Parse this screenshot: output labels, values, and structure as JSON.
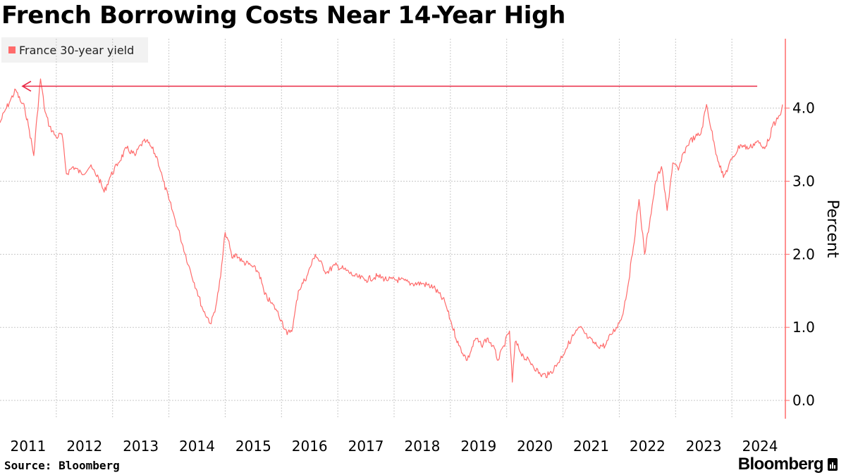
{
  "chart_data": {
    "type": "line",
    "title": "French Borrowing Costs Near 14-Year High",
    "ylabel": "Percent",
    "xlabel": "",
    "ylim": [
      -0.25,
      4.95
    ],
    "xlim": [
      2011.0,
      2024.95
    ],
    "y_ticks": [
      {
        "value": 0,
        "label": "0.0"
      },
      {
        "value": 1,
        "label": "1.0"
      },
      {
        "value": 2,
        "label": "2.0"
      },
      {
        "value": 3,
        "label": "3.0"
      },
      {
        "value": 4,
        "label": "4.0"
      }
    ],
    "x_ticks": [
      {
        "value": 2011,
        "label": "2011"
      },
      {
        "value": 2012,
        "label": "2012"
      },
      {
        "value": 2013,
        "label": "2013"
      },
      {
        "value": 2014,
        "label": "2014"
      },
      {
        "value": 2015,
        "label": "2015"
      },
      {
        "value": 2016,
        "label": "2016"
      },
      {
        "value": 2017,
        "label": "2017"
      },
      {
        "value": 2018,
        "label": "2018"
      },
      {
        "value": 2019,
        "label": "2019"
      },
      {
        "value": 2020,
        "label": "2020"
      },
      {
        "value": 2021,
        "label": "2021"
      },
      {
        "value": 2022,
        "label": "2022"
      },
      {
        "value": 2023,
        "label": "2023"
      },
      {
        "value": 2024,
        "label": "2024"
      }
    ],
    "legend": {
      "position": "top-left",
      "entries": [
        "France 30-year yield"
      ]
    },
    "grid": true,
    "colors": {
      "series": "#ff6b6b",
      "axis": "#ff6b6b",
      "arrow": "#ea2844",
      "grid": "#c8c8c8"
    },
    "annotation": {
      "type": "arrow",
      "from": [
        2024.45,
        4.3
      ],
      "to": [
        2011.4,
        4.3
      ]
    },
    "series": [
      {
        "name": "France 30-year yield",
        "x": [
          2011.0,
          2011.08,
          2011.18,
          2011.28,
          2011.36,
          2011.44,
          2011.52,
          2011.6,
          2011.66,
          2011.72,
          2011.8,
          2011.88,
          2012.0,
          2012.1,
          2012.18,
          2012.3,
          2012.45,
          2012.6,
          2012.75,
          2012.85,
          2012.95,
          2013.1,
          2013.25,
          2013.4,
          2013.5,
          2013.6,
          2013.7,
          2013.8,
          2013.9,
          2014.0,
          2014.1,
          2014.2,
          2014.35,
          2014.5,
          2014.6,
          2014.75,
          2014.85,
          2014.92,
          2015.0,
          2015.05,
          2015.12,
          2015.2,
          2015.3,
          2015.45,
          2015.6,
          2015.7,
          2015.8,
          2015.9,
          2016.0,
          2016.1,
          2016.2,
          2016.3,
          2016.45,
          2016.6,
          2016.8,
          2016.95,
          2017.1,
          2017.3,
          2017.5,
          2017.7,
          2017.9,
          2018.1,
          2018.3,
          2018.5,
          2018.7,
          2018.9,
          2019.0,
          2019.15,
          2019.3,
          2019.45,
          2019.55,
          2019.65,
          2019.75,
          2019.85,
          2019.95,
          2020.05,
          2020.1,
          2020.15,
          2020.3,
          2020.45,
          2020.6,
          2020.75,
          2020.9,
          2021.05,
          2021.15,
          2021.3,
          2021.45,
          2021.6,
          2021.75,
          2021.85,
          2021.95,
          2022.05,
          2022.15,
          2022.25,
          2022.35,
          2022.45,
          2022.55,
          2022.65,
          2022.75,
          2022.85,
          2022.95,
          2023.05,
          2023.15,
          2023.25,
          2023.35,
          2023.45,
          2023.55,
          2023.7,
          2023.85,
          2024.0,
          2024.15,
          2024.3,
          2024.45,
          2024.55,
          2024.65,
          2024.72,
          2024.78,
          2024.85,
          2024.9
        ],
        "values": [
          3.8,
          3.95,
          4.1,
          4.25,
          4.1,
          4.0,
          3.7,
          3.35,
          3.9,
          4.4,
          3.95,
          3.75,
          3.6,
          3.65,
          3.1,
          3.2,
          3.1,
          3.2,
          3.05,
          2.85,
          3.05,
          3.25,
          3.45,
          3.35,
          3.5,
          3.55,
          3.45,
          3.3,
          3.0,
          2.75,
          2.5,
          2.25,
          1.85,
          1.5,
          1.25,
          1.05,
          1.35,
          1.7,
          2.3,
          2.2,
          1.95,
          2.0,
          1.9,
          1.85,
          1.75,
          1.45,
          1.35,
          1.25,
          1.1,
          0.9,
          1.0,
          1.5,
          1.7,
          2.0,
          1.75,
          1.85,
          1.8,
          1.7,
          1.65,
          1.7,
          1.65,
          1.65,
          1.6,
          1.6,
          1.55,
          1.35,
          1.1,
          0.75,
          0.55,
          0.85,
          0.75,
          0.85,
          0.75,
          0.55,
          0.75,
          0.95,
          0.25,
          0.8,
          0.6,
          0.5,
          0.35,
          0.35,
          0.5,
          0.7,
          0.85,
          1.0,
          0.85,
          0.75,
          0.75,
          0.9,
          1.0,
          1.15,
          1.55,
          2.1,
          2.75,
          2.0,
          2.5,
          3.0,
          3.2,
          2.6,
          3.25,
          3.15,
          3.4,
          3.55,
          3.6,
          3.65,
          4.05,
          3.45,
          3.05,
          3.3,
          3.5,
          3.45,
          3.55,
          3.45,
          3.55,
          3.75,
          3.8,
          3.9,
          4.05
        ]
      }
    ]
  },
  "source": "Source: Bloomberg",
  "brand": "Bloomberg"
}
